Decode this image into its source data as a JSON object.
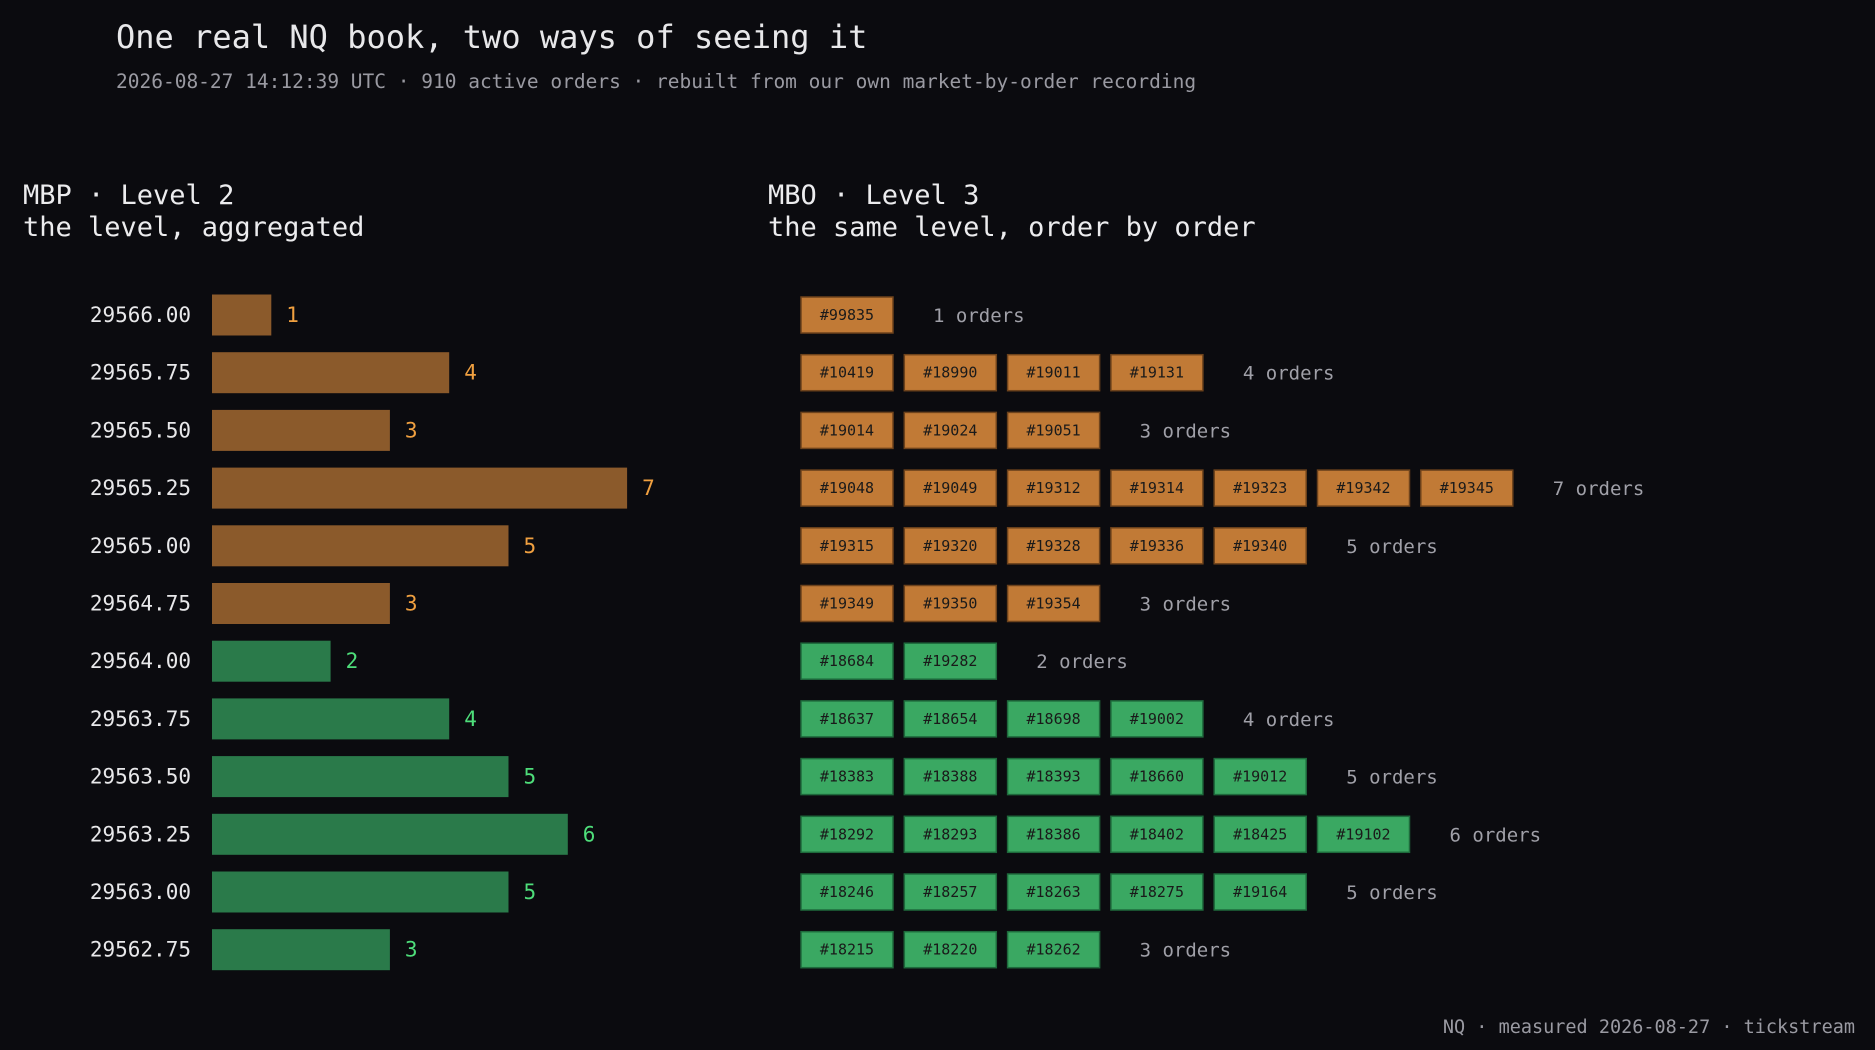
{
  "title": "One real NQ book, two ways of seeing it",
  "subtitle": "2026-08-27 14:12:39 UTC · 910 active orders · rebuilt from our own market-by-order recording",
  "mbp": {
    "title": "MBP · Level 2",
    "subtitle": "the level, aggregated"
  },
  "mbo": {
    "title": "MBO · Level 3",
    "subtitle": "the same level, order by order"
  },
  "footer": "NQ · measured 2026-08-27 · tickstream",
  "colors": {
    "ask_bar": "#8b5a2b",
    "ask_chip": "#c17a36",
    "ask_label": "#f0a040",
    "bid_bar": "#2a7a4a",
    "bid_chip": "#3aa862",
    "bid_label": "#4ede7a",
    "price_text": "#e8e8ea",
    "muted_text": "#a0a0a8"
  },
  "chart_data": {
    "type": "bar",
    "orientation": "horizontal",
    "x_unit": "orders",
    "levels": [
      {
        "price": "29566.00",
        "side": "ask",
        "count": 1,
        "orders": [
          "#99835"
        ]
      },
      {
        "price": "29565.75",
        "side": "ask",
        "count": 4,
        "orders": [
          "#10419",
          "#18990",
          "#19011",
          "#19131"
        ]
      },
      {
        "price": "29565.50",
        "side": "ask",
        "count": 3,
        "orders": [
          "#19014",
          "#19024",
          "#19051"
        ]
      },
      {
        "price": "29565.25",
        "side": "ask",
        "count": 7,
        "orders": [
          "#19048",
          "#19049",
          "#19312",
          "#19314",
          "#19323",
          "#19342",
          "#19345"
        ]
      },
      {
        "price": "29565.00",
        "side": "ask",
        "count": 5,
        "orders": [
          "#19315",
          "#19320",
          "#19328",
          "#19336",
          "#19340"
        ]
      },
      {
        "price": "29564.75",
        "side": "ask",
        "count": 3,
        "orders": [
          "#19349",
          "#19350",
          "#19354"
        ]
      },
      {
        "price": "29564.00",
        "side": "bid",
        "count": 2,
        "orders": [
          "#18684",
          "#19282"
        ]
      },
      {
        "price": "29563.75",
        "side": "bid",
        "count": 4,
        "orders": [
          "#18637",
          "#18654",
          "#18698",
          "#19002"
        ]
      },
      {
        "price": "29563.50",
        "side": "bid",
        "count": 5,
        "orders": [
          "#18383",
          "#18388",
          "#18393",
          "#18660",
          "#19012"
        ]
      },
      {
        "price": "29563.25",
        "side": "bid",
        "count": 6,
        "orders": [
          "#18292",
          "#18293",
          "#18386",
          "#18402",
          "#18425",
          "#19102"
        ]
      },
      {
        "price": "29563.00",
        "side": "bid",
        "count": 5,
        "orders": [
          "#18246",
          "#18257",
          "#18263",
          "#18275",
          "#19164"
        ]
      },
      {
        "price": "29562.75",
        "side": "bid",
        "count": 3,
        "orders": [
          "#18215",
          "#18220",
          "#18262"
        ]
      }
    ],
    "orders_suffix": " orders"
  }
}
